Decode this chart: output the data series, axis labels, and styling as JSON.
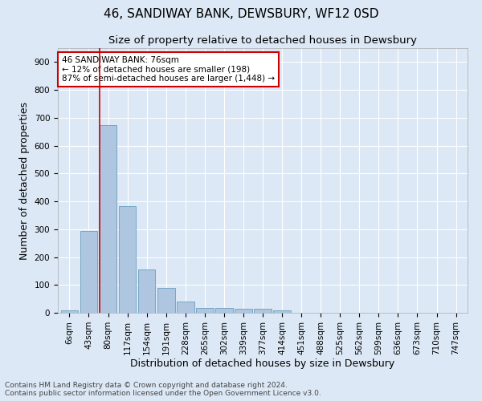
{
  "title1": "46, SANDIWAY BANK, DEWSBURY, WF12 0SD",
  "title2": "Size of property relative to detached houses in Dewsbury",
  "xlabel": "Distribution of detached houses by size in Dewsbury",
  "ylabel": "Number of detached properties",
  "bar_labels": [
    "6sqm",
    "43sqm",
    "80sqm",
    "117sqm",
    "154sqm",
    "191sqm",
    "228sqm",
    "265sqm",
    "302sqm",
    "339sqm",
    "377sqm",
    "414sqm",
    "451sqm",
    "488sqm",
    "525sqm",
    "562sqm",
    "599sqm",
    "636sqm",
    "673sqm",
    "710sqm",
    "747sqm"
  ],
  "bar_values": [
    10,
    295,
    675,
    382,
    155,
    90,
    40,
    18,
    17,
    13,
    13,
    9,
    0,
    0,
    0,
    0,
    0,
    0,
    0,
    0,
    0
  ],
  "bar_color": "#aec6e0",
  "bar_edge_color": "#6a9fc0",
  "vline_x": 2,
  "vline_color": "#cc0000",
  "annotation_text": "46 SANDIWAY BANK: 76sqm\n← 12% of detached houses are smaller (198)\n87% of semi-detached houses are larger (1,448) →",
  "annotation_box_color": "#ffffff",
  "annotation_box_edge": "#cc0000",
  "background_color": "#dce8f5",
  "grid_color": "#ffffff",
  "ylim": [
    0,
    950
  ],
  "yticks": [
    0,
    100,
    200,
    300,
    400,
    500,
    600,
    700,
    800,
    900
  ],
  "footnote": "Contains HM Land Registry data © Crown copyright and database right 2024.\nContains public sector information licensed under the Open Government Licence v3.0.",
  "title1_fontsize": 11,
  "title2_fontsize": 9.5,
  "xlabel_fontsize": 9,
  "ylabel_fontsize": 9,
  "tick_fontsize": 7.5,
  "footnote_fontsize": 6.5
}
